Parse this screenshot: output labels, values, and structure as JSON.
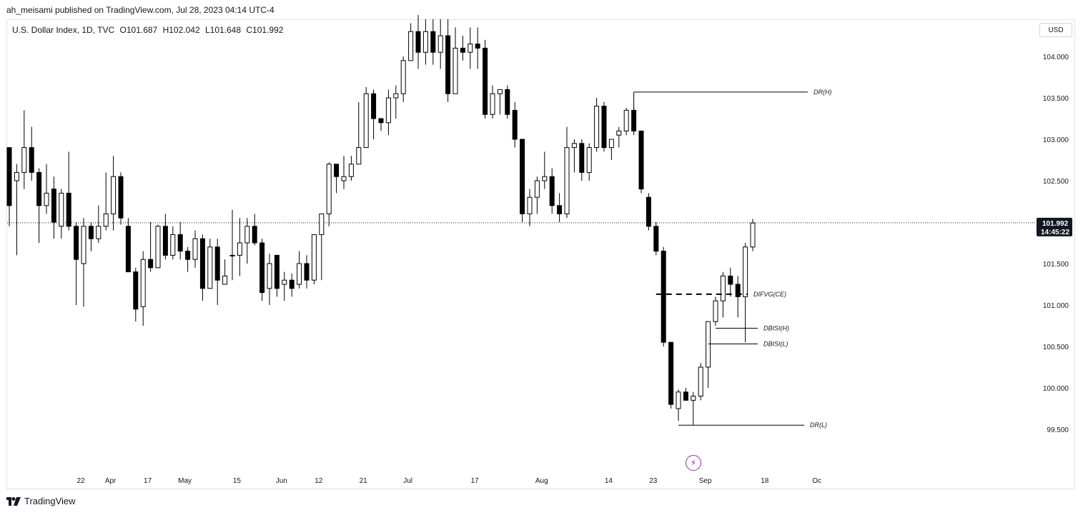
{
  "header": {
    "published": "ah_meisami published on TradingView.com, Jul 28, 2023 04:14 UTC-4"
  },
  "legend": {
    "symbol": "U.S. Dollar Index, 1D, TVC",
    "open": "O101.687",
    "high": "H102.042",
    "low": "L101.648",
    "close": "C101.992"
  },
  "currency_button": "USD",
  "price_tag": {
    "price": "101.992",
    "countdown": "14:45:22",
    "bg_color": "#131722"
  },
  "brand": {
    "name": "TradingView"
  },
  "colors": {
    "up_fill": "#ffffff",
    "down_fill": "#000000",
    "wick": "#000000",
    "accent_lightning": "#9c27b0"
  },
  "chart_data": {
    "type": "candlestick",
    "y_axis": {
      "ticks": [
        "104.000",
        "103.500",
        "103.000",
        "102.500",
        "101.500",
        "101.000",
        "100.500",
        "100.000",
        "99.500"
      ],
      "range": [
        99.0,
        104.45
      ]
    },
    "x_axis": {
      "ticks": [
        "22",
        "Apr",
        "17",
        "May",
        "15",
        "Jun",
        "12",
        "21",
        "Jul",
        "17",
        "Aug",
        "14",
        "23",
        "Sep",
        "18",
        "Oc"
      ]
    },
    "last_price": 101.992,
    "candles": [
      [
        102.9,
        102.2,
        102.3,
        101.95
      ],
      [
        102.5,
        102.6,
        102.7,
        101.6
      ],
      [
        102.6,
        102.9,
        103.35,
        102.4
      ],
      [
        102.9,
        102.6,
        103.15,
        102.5
      ],
      [
        102.6,
        102.2,
        102.65,
        101.75
      ],
      [
        102.2,
        102.35,
        102.7,
        102.1
      ],
      [
        102.4,
        102.0,
        102.55,
        101.8
      ],
      [
        101.95,
        102.35,
        102.4,
        101.8
      ],
      [
        102.35,
        101.95,
        102.85,
        101.9
      ],
      [
        101.95,
        101.55,
        102.0,
        101.0
      ],
      [
        101.5,
        101.95,
        102.05,
        100.98
      ],
      [
        101.95,
        101.8,
        102.0,
        101.65
      ],
      [
        101.8,
        101.95,
        102.2,
        101.75
      ],
      [
        101.95,
        102.1,
        102.6,
        101.9
      ],
      [
        102.1,
        102.55,
        102.8,
        101.9
      ],
      [
        102.55,
        102.05,
        102.6,
        101.97
      ],
      [
        101.95,
        101.4,
        102.05,
        101.45
      ],
      [
        101.4,
        100.95,
        101.45,
        100.8
      ],
      [
        100.98,
        101.55,
        101.65,
        100.75
      ],
      [
        101.55,
        101.45,
        102.0,
        101.4
      ],
      [
        101.45,
        101.95,
        101.97,
        101.45
      ],
      [
        101.95,
        101.6,
        102.1,
        101.55
      ],
      [
        101.6,
        101.85,
        101.95,
        101.55
      ],
      [
        101.85,
        101.65,
        102.0,
        101.55
      ],
      [
        101.65,
        101.55,
        101.7,
        101.4
      ],
      [
        101.55,
        101.8,
        101.9,
        101.45
      ],
      [
        101.8,
        101.2,
        101.85,
        101.05
      ],
      [
        101.2,
        101.7,
        101.8,
        101.2
      ],
      [
        101.7,
        101.3,
        101.8,
        101.0
      ],
      [
        101.25,
        101.35,
        101.55,
        101.25
      ],
      [
        101.6,
        101.6,
        102.15,
        101.3
      ],
      [
        101.6,
        101.75,
        102.05,
        101.35
      ],
      [
        101.75,
        101.95,
        102.05,
        101.5
      ],
      [
        101.95,
        101.75,
        102.1,
        101.72
      ],
      [
        101.75,
        101.15,
        101.8,
        101.05
      ],
      [
        101.2,
        101.5,
        101.62,
        101.0
      ],
      [
        101.6,
        101.2,
        101.55,
        101.1
      ],
      [
        101.25,
        101.3,
        101.4,
        101.05
      ],
      [
        101.3,
        101.2,
        101.38,
        101.1
      ],
      [
        101.25,
        101.5,
        101.65,
        101.2
      ],
      [
        101.5,
        101.3,
        101.6,
        101.2
      ],
      [
        101.3,
        101.85,
        101.85,
        101.25
      ],
      [
        101.85,
        102.1,
        101.97,
        101.3
      ],
      [
        102.1,
        102.7,
        102.72,
        101.95
      ],
      [
        102.7,
        102.55,
        102.65,
        102.35
      ],
      [
        102.5,
        102.55,
        102.8,
        102.4
      ],
      [
        102.55,
        102.7,
        102.8,
        102.5
      ],
      [
        102.7,
        102.9,
        103.45,
        102.75
      ],
      [
        102.9,
        103.55,
        103.63,
        102.9
      ],
      [
        103.55,
        103.25,
        103.6,
        103.0
      ],
      [
        103.25,
        103.2,
        103.25,
        103.1
      ],
      [
        103.2,
        103.5,
        103.6,
        103.05
      ],
      [
        103.5,
        103.55,
        103.65,
        103.25
      ],
      [
        103.55,
        103.95,
        104.0,
        103.45
      ],
      [
        103.95,
        104.3,
        104.4,
        103.95
      ],
      [
        104.3,
        104.05,
        104.5,
        103.85
      ],
      [
        104.05,
        104.3,
        104.45,
        103.9
      ],
      [
        104.3,
        104.05,
        104.45,
        103.9
      ],
      [
        104.05,
        104.25,
        104.45,
        103.85
      ],
      [
        104.25,
        103.55,
        104.45,
        103.45
      ],
      [
        103.55,
        104.1,
        104.35,
        103.55
      ],
      [
        104.1,
        104.05,
        104.25,
        103.95
      ],
      [
        104.05,
        104.15,
        104.35,
        103.85
      ],
      [
        104.15,
        104.1,
        104.35,
        103.85
      ],
      [
        104.1,
        103.3,
        104.2,
        103.25
      ],
      [
        103.3,
        103.55,
        103.65,
        103.25
      ],
      [
        103.55,
        103.6,
        103.6,
        103.3
      ],
      [
        103.6,
        103.3,
        103.65,
        103.25
      ],
      [
        103.35,
        103.0,
        103.45,
        102.9
      ],
      [
        103.0,
        102.1,
        103.0,
        102.0
      ],
      [
        102.1,
        102.3,
        102.4,
        101.95
      ],
      [
        102.3,
        102.5,
        102.55,
        102.1
      ],
      [
        102.5,
        102.55,
        102.85,
        102.4
      ],
      [
        102.55,
        102.2,
        102.65,
        102.1
      ],
      [
        102.2,
        102.1,
        102.35,
        102.0
      ],
      [
        102.1,
        102.9,
        103.15,
        102.05
      ],
      [
        102.9,
        102.95,
        103.0,
        102.6
      ],
      [
        102.95,
        102.6,
        103.0,
        102.5
      ],
      [
        102.6,
        102.9,
        102.95,
        102.5
      ],
      [
        102.9,
        103.4,
        103.5,
        102.85
      ],
      [
        103.4,
        102.9,
        103.45,
        102.85
      ],
      [
        102.9,
        103.0,
        103.0,
        102.75
      ],
      [
        103.05,
        103.1,
        103.15,
        102.9
      ],
      [
        103.1,
        103.35,
        103.38,
        103.05
      ],
      [
        103.35,
        103.1,
        103.4,
        103.05
      ],
      [
        103.1,
        102.4,
        103.1,
        102.35
      ],
      [
        102.3,
        101.95,
        102.35,
        101.9
      ],
      [
        101.95,
        101.65,
        102.0,
        101.6
      ],
      [
        101.65,
        100.55,
        101.7,
        100.5
      ],
      [
        100.55,
        99.8,
        100.55,
        99.75
      ],
      [
        99.75,
        99.95,
        99.98,
        99.6
      ],
      [
        99.95,
        99.85,
        100.0,
        99.85
      ],
      [
        99.85,
        99.9,
        99.95,
        99.55
      ],
      [
        99.9,
        100.25,
        100.3,
        99.85
      ],
      [
        100.25,
        100.8,
        100.8,
        100.0
      ],
      [
        100.8,
        101.05,
        101.1,
        100.75
      ],
      [
        101.05,
        101.35,
        101.4,
        100.85
      ],
      [
        101.35,
        101.25,
        101.45,
        101.1
      ],
      [
        101.25,
        101.1,
        101.35,
        100.85
      ],
      [
        101.1,
        101.7,
        101.75,
        100.55
      ],
      [
        101.7,
        101.99,
        102.04,
        101.65
      ]
    ],
    "x_index": [
      10,
      14,
      19,
      24,
      31,
      37,
      42,
      48,
      54,
      63,
      72,
      81,
      87,
      94,
      102,
      109
    ],
    "annotations": [
      {
        "label": "DR(H)",
        "price": 103.57,
        "from_candle": 84,
        "style": "solid"
      },
      {
        "label": "DIFVG(CE)",
        "price": 101.13,
        "from_candle": 87,
        "style": "dashed"
      },
      {
        "label": "DBISI(H)",
        "price": 100.72,
        "from_candle": 95,
        "style": "solid"
      },
      {
        "label": "DBISI(L)",
        "price": 100.53,
        "from_candle": 94,
        "style": "solid"
      },
      {
        "label": "DR(L)",
        "price": 99.55,
        "from_candle": 90,
        "style": "solid"
      }
    ]
  }
}
